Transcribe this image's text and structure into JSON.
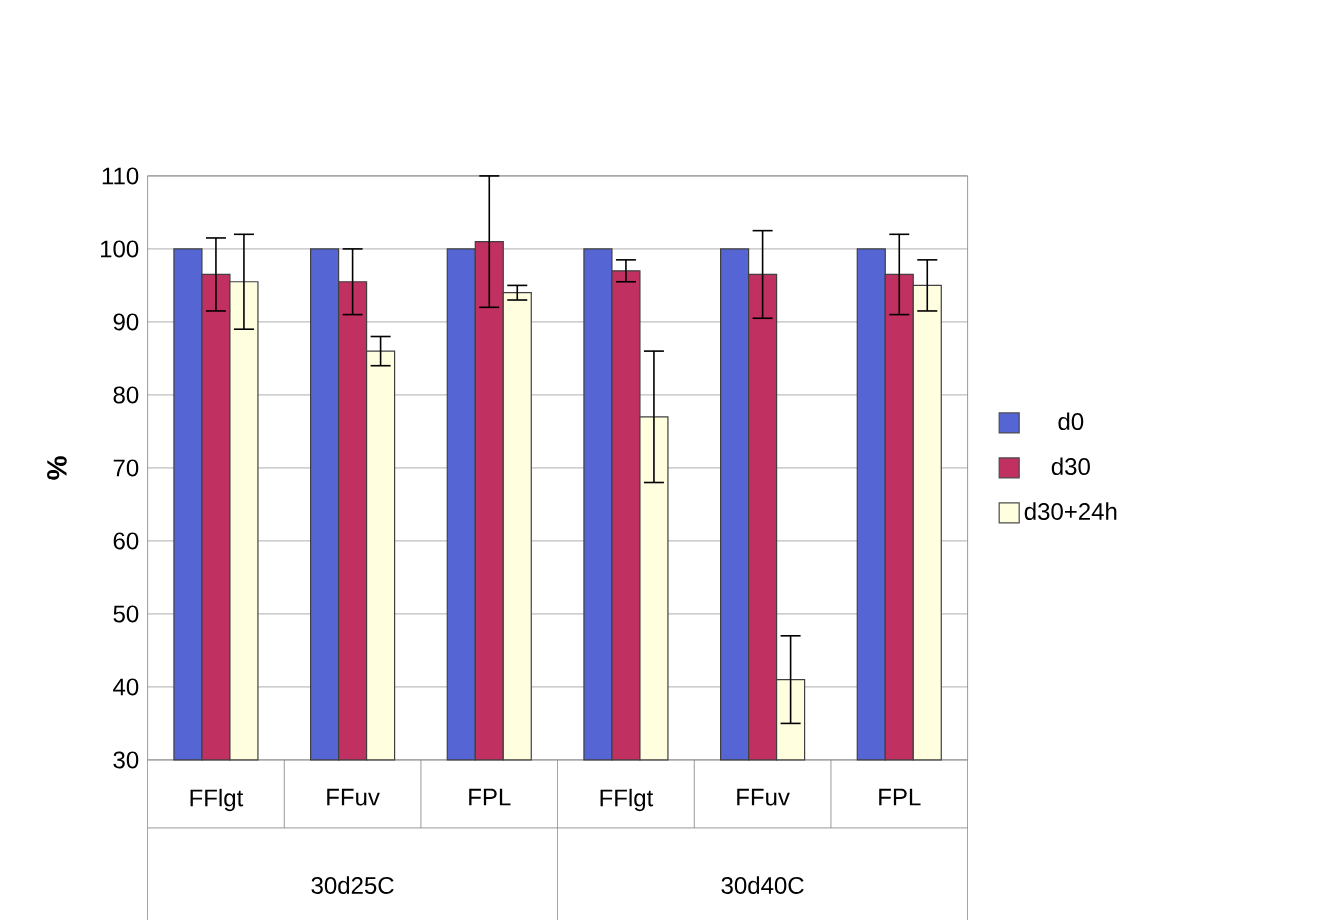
{
  "chart_data": {
    "type": "bar",
    "ylabel": "%",
    "categories": [
      "FFlgt",
      "FFuv",
      "FPL",
      "FFlgt",
      "FFuv",
      "FPL"
    ],
    "series": [
      {
        "name": "d0",
        "color": "#5566d4",
        "values": [
          100,
          100,
          100,
          100,
          100,
          100
        ]
      },
      {
        "name": "d30",
        "color": "#c03060",
        "values": [
          96.5,
          95.5,
          101,
          97,
          96.5,
          96.5
        ],
        "errors": [
          5,
          4.5,
          9,
          1.5,
          6,
          5.5
        ]
      },
      {
        "name": "d30+24h",
        "color": "#ffffe0",
        "values": [
          95.5,
          86,
          94,
          77,
          41,
          95
        ],
        "errors": [
          6.5,
          2,
          1,
          9,
          6,
          3.5
        ]
      }
    ],
    "annotations": [
      "30d25C",
      "30d40C"
    ],
    "ylim": [
      30,
      110
    ],
    "yticks": [
      30,
      40,
      50,
      60,
      70,
      80,
      90,
      100,
      110
    ],
    "grid": "y",
    "legend": "right"
  }
}
